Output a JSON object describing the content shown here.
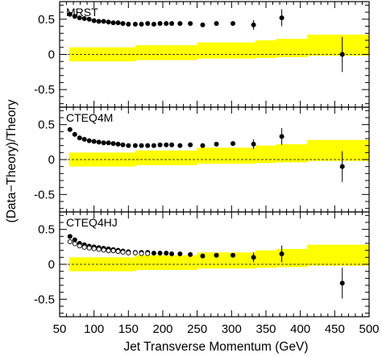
{
  "chart_data": {
    "type": "scatter",
    "xlabel": "Jet Transverse Momentum (GeV)",
    "ylabel": "(Data−Theory)/Theory",
    "xlim": [
      50,
      500
    ],
    "ylim": [
      -0.75,
      0.75
    ],
    "x_ticks": [
      50,
      100,
      150,
      200,
      250,
      300,
      350,
      400,
      450,
      500
    ],
    "x_tick_labels": [
      "50",
      "100",
      "150",
      "200",
      "250",
      "300",
      "350",
      "400",
      "450",
      "500"
    ],
    "y_ticks": [
      0.5,
      0,
      -0.5
    ],
    "y_tick_labels": [
      "0.5",
      "0",
      "-0.5"
    ],
    "reference_line": 0,
    "colors": {
      "band": "#ffff00",
      "points": "#000000",
      "frame": "#000000"
    },
    "systematic_band": [
      {
        "x0": 64,
        "x1": 160,
        "lo": -0.1,
        "hi": 0.1
      },
      {
        "x0": 160,
        "x1": 250,
        "lo": -0.08,
        "hi": 0.13
      },
      {
        "x0": 250,
        "x1": 335,
        "lo": -0.06,
        "hi": 0.17
      },
      {
        "x0": 335,
        "x1": 365,
        "lo": -0.05,
        "hi": 0.2
      },
      {
        "x0": 365,
        "x1": 410,
        "lo": -0.04,
        "hi": 0.22
      },
      {
        "x0": 410,
        "x1": 500,
        "lo": -0.02,
        "hi": 0.28
      }
    ],
    "panels": [
      {
        "label": "MRST",
        "series": [
          {
            "marker": "filled",
            "x": [
              65,
              72,
              79,
              86,
              93,
              100,
              107,
              114,
              121,
              128,
              135,
              142,
              150,
              160,
              169,
              178,
              187,
              196,
              205,
              213,
              225,
              240,
              258,
              278,
              302,
              332,
              373,
              461
            ],
            "y": [
              0.57,
              0.54,
              0.52,
              0.51,
              0.5,
              0.48,
              0.47,
              0.47,
              0.46,
              0.45,
              0.45,
              0.44,
              0.43,
              0.43,
              0.43,
              0.44,
              0.43,
              0.44,
              0.44,
              0.44,
              0.44,
              0.44,
              0.42,
              0.44,
              0.44,
              0.42,
              0.52,
              0.0
            ],
            "err": [
              0,
              0,
              0,
              0,
              0,
              0,
              0,
              0,
              0,
              0,
              0,
              0,
              0,
              0,
              0,
              0,
              0,
              0,
              0,
              0,
              0,
              0,
              0,
              0,
              0.03,
              0.07,
              0.12,
              0.25
            ]
          }
        ]
      },
      {
        "label": "CTEQ4M",
        "series": [
          {
            "marker": "filled",
            "x": [
              65,
              72,
              79,
              86,
              93,
              100,
              107,
              114,
              121,
              128,
              135,
              142,
              150,
              160,
              169,
              178,
              187,
              196,
              205,
              213,
              225,
              240,
              258,
              278,
              302,
              332,
              373,
              461
            ],
            "y": [
              0.43,
              0.36,
              0.31,
              0.29,
              0.27,
              0.26,
              0.25,
              0.24,
              0.24,
              0.23,
              0.22,
              0.21,
              0.2,
              0.2,
              0.2,
              0.2,
              0.2,
              0.21,
              0.21,
              0.21,
              0.2,
              0.21,
              0.2,
              0.22,
              0.23,
              0.22,
              0.33,
              -0.1
            ],
            "err": [
              0,
              0,
              0,
              0,
              0,
              0,
              0,
              0,
              0,
              0,
              0,
              0,
              0,
              0,
              0,
              0,
              0,
              0,
              0,
              0,
              0,
              0,
              0,
              0,
              0.03,
              0.07,
              0.12,
              0.22
            ]
          }
        ]
      },
      {
        "label": "CTEQ4HJ",
        "series": [
          {
            "marker": "filled",
            "x": [
              65,
              72,
              79,
              86,
              93,
              100,
              107,
              114,
              121,
              128,
              135,
              142,
              150,
              160,
              169,
              178,
              187,
              196,
              205,
              213,
              225,
              240,
              258,
              278,
              302,
              332,
              373,
              461
            ],
            "y": [
              0.4,
              0.35,
              0.3,
              0.28,
              0.26,
              0.25,
              0.24,
              0.23,
              0.22,
              0.21,
              0.2,
              0.19,
              0.18,
              0.17,
              0.17,
              0.17,
              0.16,
              0.16,
              0.16,
              0.15,
              0.15,
              0.14,
              0.12,
              0.13,
              0.13,
              0.1,
              0.15,
              -0.27
            ],
            "err": [
              0,
              0,
              0,
              0,
              0,
              0,
              0,
              0,
              0,
              0,
              0,
              0,
              0,
              0,
              0,
              0,
              0,
              0,
              0,
              0,
              0,
              0,
              0,
              0,
              0.03,
              0.07,
              0.12,
              0.22
            ]
          },
          {
            "marker": "open",
            "x": [
              65,
              72,
              79,
              86,
              93,
              100,
              107,
              114,
              121,
              128,
              135,
              142,
              150,
              160,
              169,
              178
            ],
            "y": [
              0.33,
              0.3,
              0.27,
              0.25,
              0.24,
              0.23,
              0.22,
              0.21,
              0.2,
              0.2,
              0.19,
              0.18,
              0.17,
              0.17,
              0.16,
              0.16
            ],
            "err": [
              0,
              0,
              0,
              0,
              0,
              0,
              0,
              0,
              0,
              0,
              0,
              0,
              0,
              0,
              0,
              0
            ]
          }
        ]
      }
    ]
  }
}
